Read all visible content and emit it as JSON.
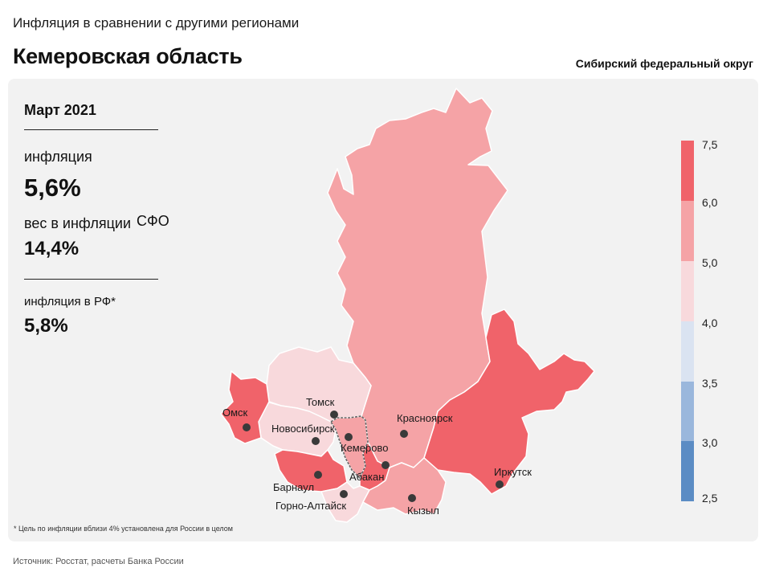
{
  "header": {
    "subtitle": "Инфляция в сравнении с другими регионами",
    "region": "Кемеровская область",
    "district": "Сибирский федеральный округ"
  },
  "stats": {
    "period": "Март 2021",
    "inflation_label": "инфляция",
    "inflation_value": "5,6%",
    "weight_label": "вес в инфляции",
    "weight_suffix": "СФО",
    "weight_value": "14,4%",
    "rf_label": "инфляция в РФ*",
    "rf_value": "5,8%"
  },
  "legend": {
    "ticks": [
      "7,5",
      "6,0",
      "5,0",
      "4,0",
      "3,5",
      "3,0",
      "2,5"
    ],
    "colors": [
      "#f0636a",
      "#f5a3a6",
      "#f8d9dc",
      "#dae3f1",
      "#9ab7dc",
      "#5b8cc4"
    ]
  },
  "map": {
    "cities": {
      "omsk": "Омск",
      "novosibirsk": "Новосибирск",
      "tomsk": "Томск",
      "kemerovo": "Кемерово",
      "krasnoyarsk": "Красноярск",
      "abakan": "Абакан",
      "barnaul": "Барнаул",
      "gorno": "Горно-Алтайск",
      "kyzyl": "Кызыл",
      "irkutsk": "Иркутск"
    },
    "region_colors": {
      "omsk": "#f0636a",
      "novosibirsk": "#f8d9dc",
      "tomsk": "#f8d9dc",
      "kemerovo": "#f5a3a6",
      "krasnoyarsk": "#f5a3a6",
      "khakassia": "#f0636a",
      "altai_krai": "#f0636a",
      "altai_rep": "#f8d9dc",
      "tyva": "#f5a3a6",
      "irkutsk": "#f0636a"
    }
  },
  "footnote": "* Цель по инфляции вблизи 4% установлена для России в целом",
  "source": "Источник: Росстат, расчеты Банка России"
}
